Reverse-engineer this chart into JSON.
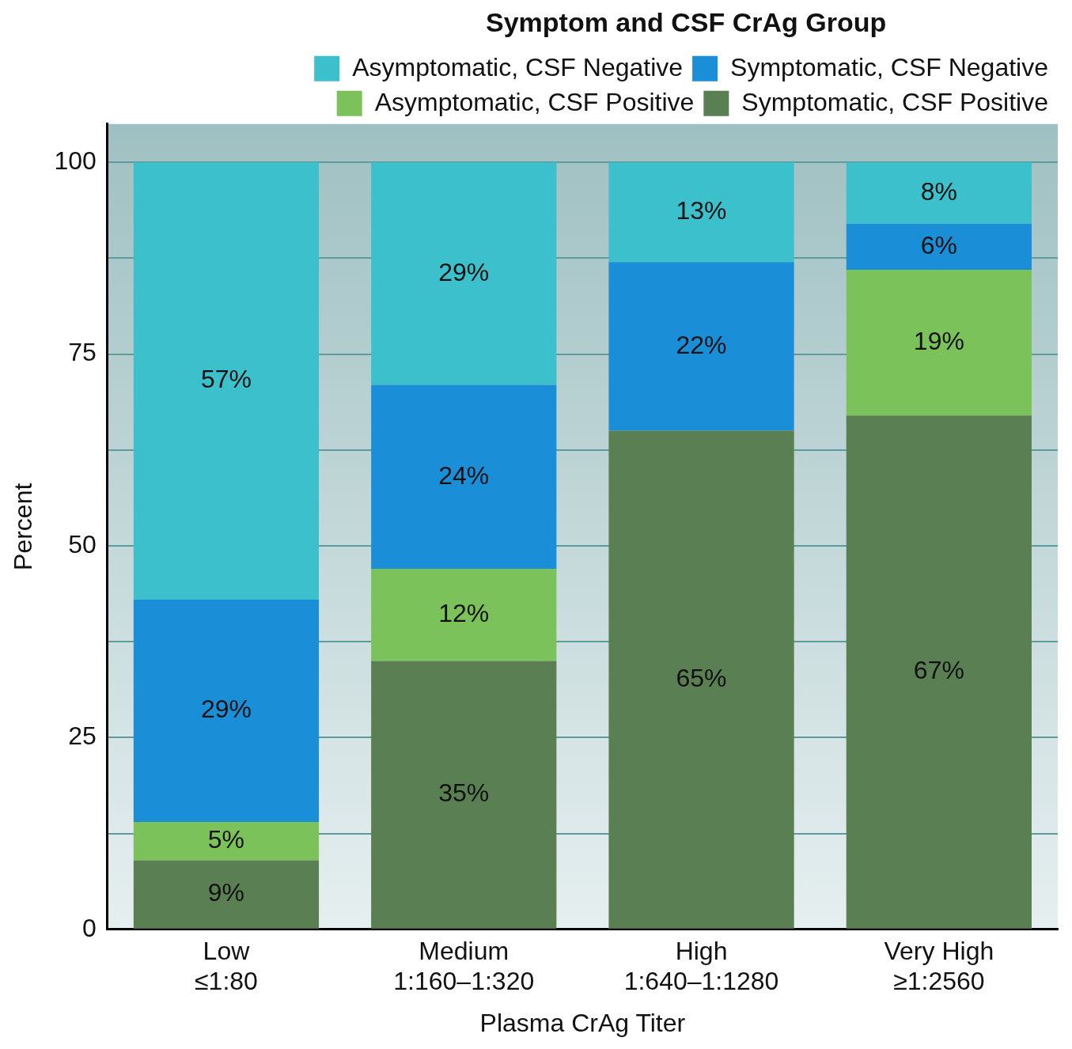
{
  "chart_data": {
    "type": "bar",
    "stacked": true,
    "categories": [
      "Low\n≤1:80",
      "Medium\n1:160–1:320",
      "High\n1:640–1:1280",
      "Very High\n≥1:2560"
    ],
    "xlabel": "Plasma CrAg Titer",
    "ylabel": "Percent",
    "legend_title": "Symptom and CSF CrAg Group",
    "legend": "top right",
    "grid": "y",
    "ylim": [
      0,
      105
    ],
    "yticks": [
      0,
      {
        "value": 12.5,
        "label": null
      },
      25,
      {
        "value": 37.5,
        "label": null
      },
      50,
      {
        "value": 62.5,
        "label": null
      },
      75,
      {
        "value": 87.5,
        "label": null
      },
      100
    ],
    "series": [
      {
        "name": "Symptomatic, CSF Positive",
        "color": "#5a7f52",
        "values": [
          9,
          35,
          65,
          67
        ],
        "value_labels": [
          "9%",
          "35%",
          "65%",
          "67%"
        ]
      },
      {
        "name": "Asymptomatic, CSF Positive",
        "color": "#7cc25a",
        "values": [
          5,
          12,
          0,
          19
        ],
        "value_labels": [
          "5%",
          "12%",
          null,
          "19%"
        ]
      },
      {
        "name": "Symptomatic, CSF Negative",
        "color": "#1a8fd8",
        "values": [
          29,
          24,
          22,
          6
        ],
        "value_labels": [
          "29%",
          "24%",
          "22%",
          "6%"
        ]
      },
      {
        "name": "Asymptomatic, CSF Negative",
        "color": "#3cc0cc",
        "values": [
          57,
          29,
          13,
          8
        ],
        "value_labels": [
          "57%",
          "29%",
          "13%",
          "8%"
        ]
      }
    ]
  }
}
